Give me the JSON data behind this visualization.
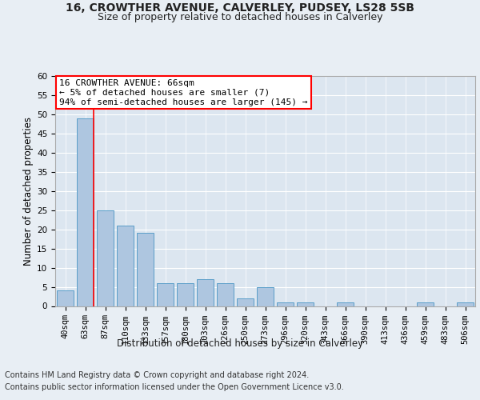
{
  "title1": "16, CROWTHER AVENUE, CALVERLEY, PUDSEY, LS28 5SB",
  "title2": "Size of property relative to detached houses in Calverley",
  "xlabel": "Distribution of detached houses by size in Calverley",
  "ylabel": "Number of detached properties",
  "footer1": "Contains HM Land Registry data © Crown copyright and database right 2024.",
  "footer2": "Contains public sector information licensed under the Open Government Licence v3.0.",
  "annotation_line1": "16 CROWTHER AVENUE: 66sqm",
  "annotation_line2": "← 5% of detached houses are smaller (7)",
  "annotation_line3": "94% of semi-detached houses are larger (145) →",
  "bar_color": "#aec6e0",
  "bar_edge_color": "#5a9ec9",
  "highlight_color": "red",
  "categories": [
    "40sqm",
    "63sqm",
    "87sqm",
    "110sqm",
    "133sqm",
    "157sqm",
    "180sqm",
    "203sqm",
    "226sqm",
    "250sqm",
    "273sqm",
    "296sqm",
    "320sqm",
    "343sqm",
    "366sqm",
    "390sqm",
    "413sqm",
    "436sqm",
    "459sqm",
    "483sqm",
    "506sqm"
  ],
  "values": [
    4,
    49,
    25,
    21,
    19,
    6,
    6,
    7,
    6,
    2,
    5,
    1,
    1,
    0,
    1,
    0,
    0,
    0,
    1,
    0,
    1
  ],
  "ylim": [
    0,
    60
  ],
  "yticks": [
    0,
    5,
    10,
    15,
    20,
    25,
    30,
    35,
    40,
    45,
    50,
    55,
    60
  ],
  "background_color": "#e8eef4",
  "plot_bg_color": "#dce6f0",
  "grid_color": "#ffffff",
  "title_fontsize": 10,
  "subtitle_fontsize": 9,
  "axis_label_fontsize": 8.5,
  "tick_fontsize": 7.5,
  "footer_fontsize": 7,
  "annotation_fontsize": 8
}
